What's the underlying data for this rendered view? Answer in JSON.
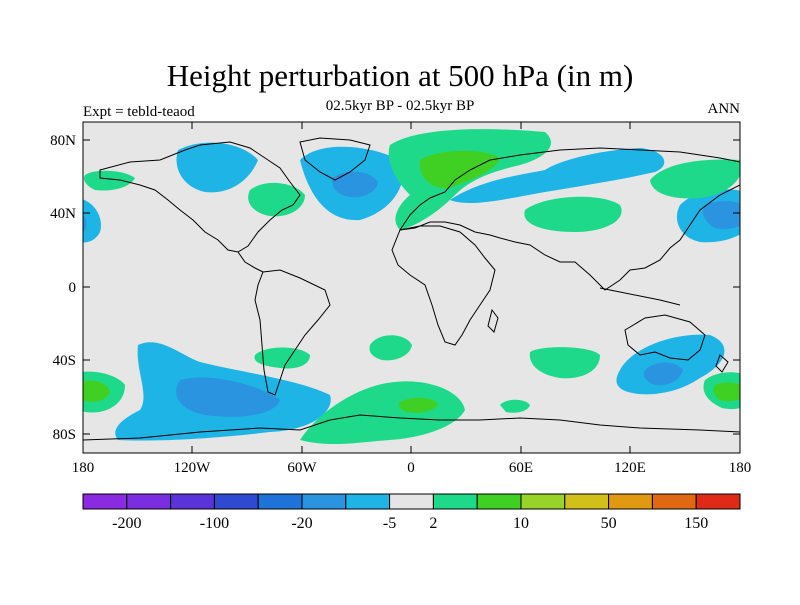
{
  "title": "Height perturbation at 500 hPa (in m)",
  "left_label": "Expt = tebld-teaod",
  "center_label": "02.5kyr BP - 02.5kyr BP",
  "right_label": "ANN",
  "lat_ticks": [
    {
      "lat": 80,
      "label": "80N"
    },
    {
      "lat": 40,
      "label": "40N"
    },
    {
      "lat": 0,
      "label": "0"
    },
    {
      "lat": -40,
      "label": "40S"
    },
    {
      "lat": -80,
      "label": "80S"
    }
  ],
  "lon_ticks": [
    {
      "lon": -180,
      "label": "180"
    },
    {
      "lon": -120,
      "label": "120W"
    },
    {
      "lon": -60,
      "label": "60W"
    },
    {
      "lon": 0,
      "label": "0"
    },
    {
      "lon": 60,
      "label": "60E"
    },
    {
      "lon": 120,
      "label": "120E"
    },
    {
      "lon": 180,
      "label": "180"
    }
  ],
  "colorbar": {
    "colors": [
      "#8a2be2",
      "#7b2ee0",
      "#5a34d8",
      "#2f49d1",
      "#1f73d8",
      "#2a94e0",
      "#1fb4e6",
      "#e5e5e5",
      "#1fd98a",
      "#3fd023",
      "#98d32a",
      "#d1c01a",
      "#e09a12",
      "#e06812",
      "#e02a18"
    ],
    "labels": [
      {
        "after_index": 0,
        "text": "-200"
      },
      {
        "after_index": 2,
        "text": "-100"
      },
      {
        "after_index": 4,
        "text": "-20"
      },
      {
        "after_index": 6,
        "text": "-5"
      },
      {
        "after_index": 7,
        "text": "2"
      },
      {
        "after_index": 9,
        "text": "10"
      },
      {
        "after_index": 11,
        "text": "50"
      },
      {
        "after_index": 13,
        "text": "150"
      }
    ]
  }
}
